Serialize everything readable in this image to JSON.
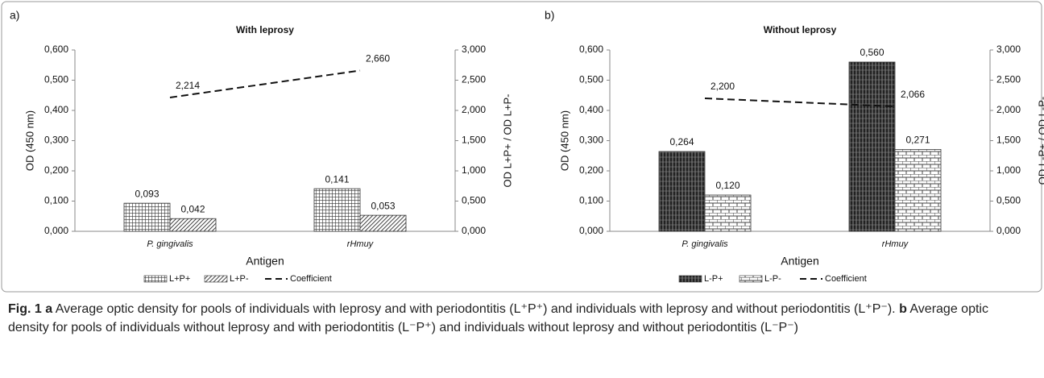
{
  "chart_data": [
    {
      "type": "bar",
      "panel": "a)",
      "title": "With leprosy",
      "xlabel": "Antigen",
      "ylabel": "OD (450 nm)",
      "y2label": "OD L+P+ / OD L+P-",
      "categories": [
        "P. gingivalis",
        "rHmuy"
      ],
      "ylim": [
        0,
        0.6
      ],
      "yticks": [
        {
          "value": 0,
          "label": "0,000"
        },
        {
          "value": 0.1,
          "label": "0,100"
        },
        {
          "value": 0.2,
          "label": "0,200"
        },
        {
          "value": 0.3,
          "label": "0,300"
        },
        {
          "value": 0.4,
          "label": "0,400"
        },
        {
          "value": 0.5,
          "label": "0,500"
        },
        {
          "value": 0.6,
          "label": "0,600"
        }
      ],
      "y2lim": [
        0,
        3
      ],
      "y2ticks": [
        {
          "value": 0,
          "label": "0,000"
        },
        {
          "value": 0.5,
          "label": "0,500"
        },
        {
          "value": 1,
          "label": "1,000"
        },
        {
          "value": 1.5,
          "label": "1,500"
        },
        {
          "value": 2,
          "label": "2,000"
        },
        {
          "value": 2.5,
          "label": "2,500"
        },
        {
          "value": 3,
          "label": "3,000"
        }
      ],
      "series": [
        {
          "name": "L+P+",
          "pattern": "grid",
          "values": [
            0.093,
            0.141
          ],
          "value_labels": [
            "0,093",
            "0,141"
          ]
        },
        {
          "name": "L+P-",
          "pattern": "diagonal",
          "values": [
            0.042,
            0.053
          ],
          "value_labels": [
            "0,042",
            "0,053"
          ]
        },
        {
          "name": "Coefficient",
          "type": "line",
          "axis": "y2",
          "color": "#111111",
          "values": [
            2.214,
            2.66
          ],
          "value_labels": [
            "2,214",
            "2,660"
          ]
        }
      ]
    },
    {
      "type": "bar",
      "panel": "b)",
      "title": "Without leprosy",
      "xlabel": "Antigen",
      "ylabel": "OD (450 nm)",
      "y2label": "OD L-P+ / OD L-P-",
      "categories": [
        "P. gingivalis",
        "rHmuy"
      ],
      "ylim": [
        0,
        0.6
      ],
      "yticks": [
        {
          "value": 0,
          "label": "0,000"
        },
        {
          "value": 0.1,
          "label": "0,100"
        },
        {
          "value": 0.2,
          "label": "0,200"
        },
        {
          "value": 0.3,
          "label": "0,300"
        },
        {
          "value": 0.4,
          "label": "0,400"
        },
        {
          "value": 0.5,
          "label": "0,500"
        },
        {
          "value": 0.6,
          "label": "0,600"
        }
      ],
      "y2lim": [
        0,
        3
      ],
      "y2ticks": [
        {
          "value": 0,
          "label": "0,000"
        },
        {
          "value": 0.5,
          "label": "0,500"
        },
        {
          "value": 1,
          "label": "1,000"
        },
        {
          "value": 1.5,
          "label": "1,500"
        },
        {
          "value": 2,
          "label": "2,000"
        },
        {
          "value": 2.5,
          "label": "2,500"
        },
        {
          "value": 3,
          "label": "3,000"
        }
      ],
      "series": [
        {
          "name": "L-P+",
          "pattern": "stripes",
          "values": [
            0.264,
            0.56
          ],
          "value_labels": [
            "0,264",
            "0,560"
          ]
        },
        {
          "name": "L-P-",
          "pattern": "brick",
          "values": [
            0.12,
            0.271
          ],
          "value_labels": [
            "0,120",
            "0,271"
          ]
        },
        {
          "name": "Coefficient",
          "type": "line",
          "axis": "y2",
          "color": "#111111",
          "values": [
            2.2,
            2.066
          ],
          "value_labels": [
            "2,200",
            "2,066"
          ]
        }
      ]
    }
  ],
  "caption": {
    "label": "Fig. 1",
    "parts": [
      {
        "tag": "a",
        "text": "Average optic density for pools of individuals with leprosy and with periodontitis (L⁺P⁺) and individuals with leprosy and without periodontitis (L⁺P⁻)."
      },
      {
        "tag": "b",
        "text": "Average optic density for pools of individuals without leprosy and with periodontitis (L⁻P⁺) and individuals without leprosy and without periodontitis (L⁻P⁻)"
      }
    ]
  }
}
